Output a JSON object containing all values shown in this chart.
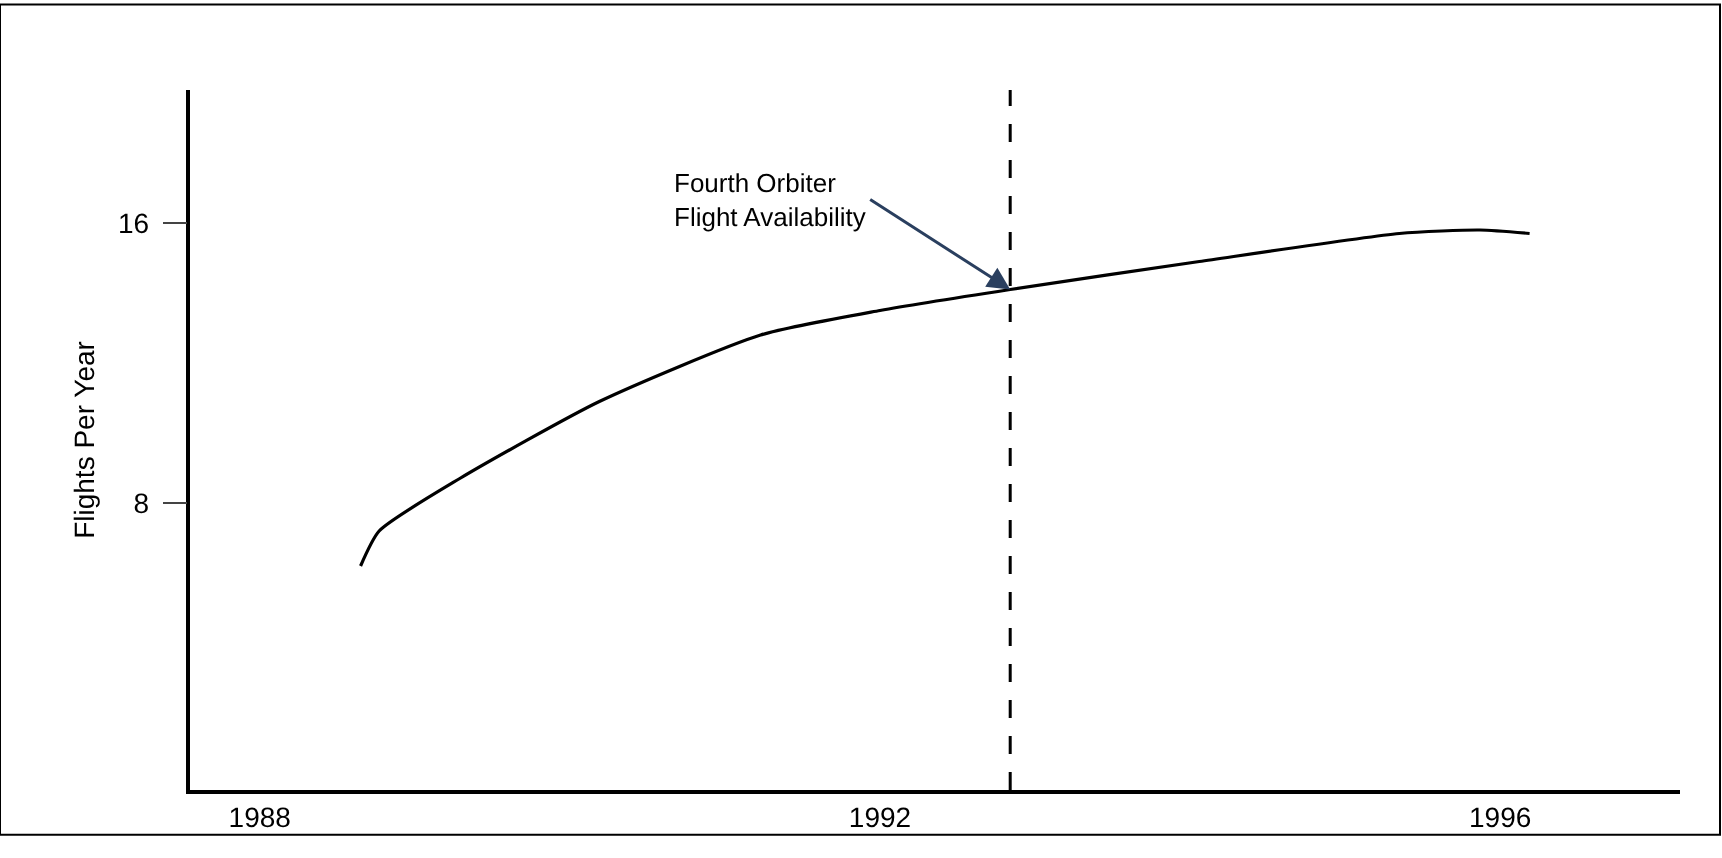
{
  "chart_data": {
    "type": "line",
    "ylabel": "Flights Per Year",
    "x": [
      1988.65,
      1988.77,
      1989.29,
      1990.19,
      1991.23,
      1992.0,
      1992.84,
      1994.06,
      1995.35,
      1995.87,
      1996.19
    ],
    "series": [
      {
        "color": "#000000",
        "values": [
          6.2,
          7.2,
          8.7,
          10.9,
          12.8,
          13.5,
          14.1,
          14.9,
          15.7,
          15.8,
          15.7
        ]
      }
    ],
    "xlim": [
      1987.55,
      1997.16
    ],
    "xticks": [
      1988,
      1992,
      1996
    ],
    "ylim": [
      -0.2,
      19.8
    ],
    "yticks": [
      8,
      16
    ],
    "ref_lines": [
      {
        "axis": "x",
        "value": 1992.84,
        "color": "#000000",
        "line_style": "dashed"
      }
    ],
    "annotations": [
      {
        "text": "Fourth Orbiter\nFlight Availability",
        "x": 1992.84,
        "y": 14.1
      }
    ],
    "marker": "none",
    "line_style": "solid"
  }
}
